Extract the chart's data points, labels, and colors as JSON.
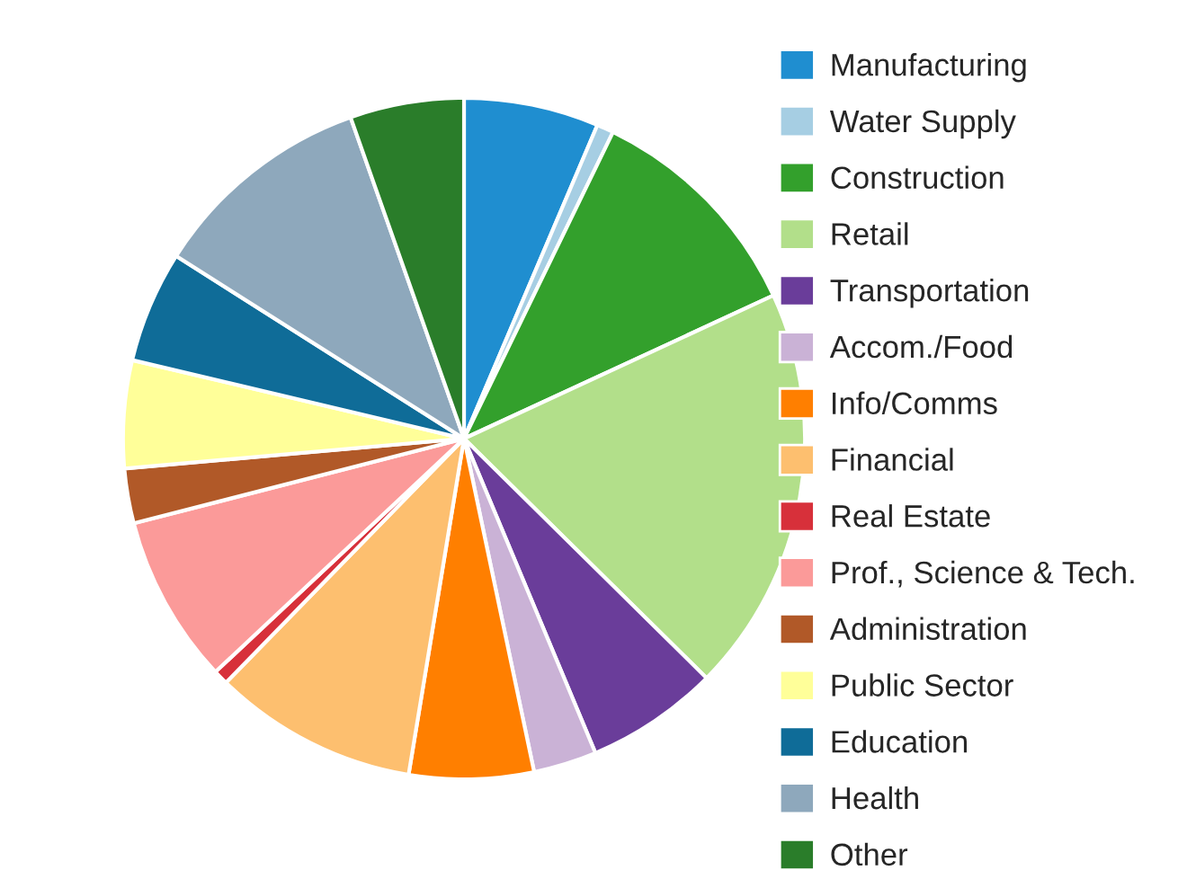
{
  "chart_data": {
    "type": "pie",
    "categories": [
      "Manufacturing",
      "Water Supply",
      "Construction",
      "Retail",
      "Transportation",
      "Accom./Food",
      "Info/Comms",
      "Financial",
      "Real Estate",
      "Prof., Science & Tech.",
      "Administration",
      "Public Sector",
      "Education",
      "Health",
      "Other"
    ],
    "values": [
      6.4,
      0.8,
      10.9,
      19.3,
      6.3,
      3.0,
      5.9,
      9.7,
      0.7,
      8.0,
      2.6,
      5.1,
      5.3,
      10.6,
      5.4
    ],
    "colors": [
      "#1f8ed0",
      "#a6cee3",
      "#33a02c",
      "#b2df8a",
      "#6a3d9a",
      "#cab2d6",
      "#ff7f00",
      "#fdbf6f",
      "#d7303a",
      "#fb9a99",
      "#b15928",
      "#ffff99",
      "#0f6c98",
      "#8ea8bc",
      "#2a7d2a"
    ],
    "legend": "right"
  }
}
